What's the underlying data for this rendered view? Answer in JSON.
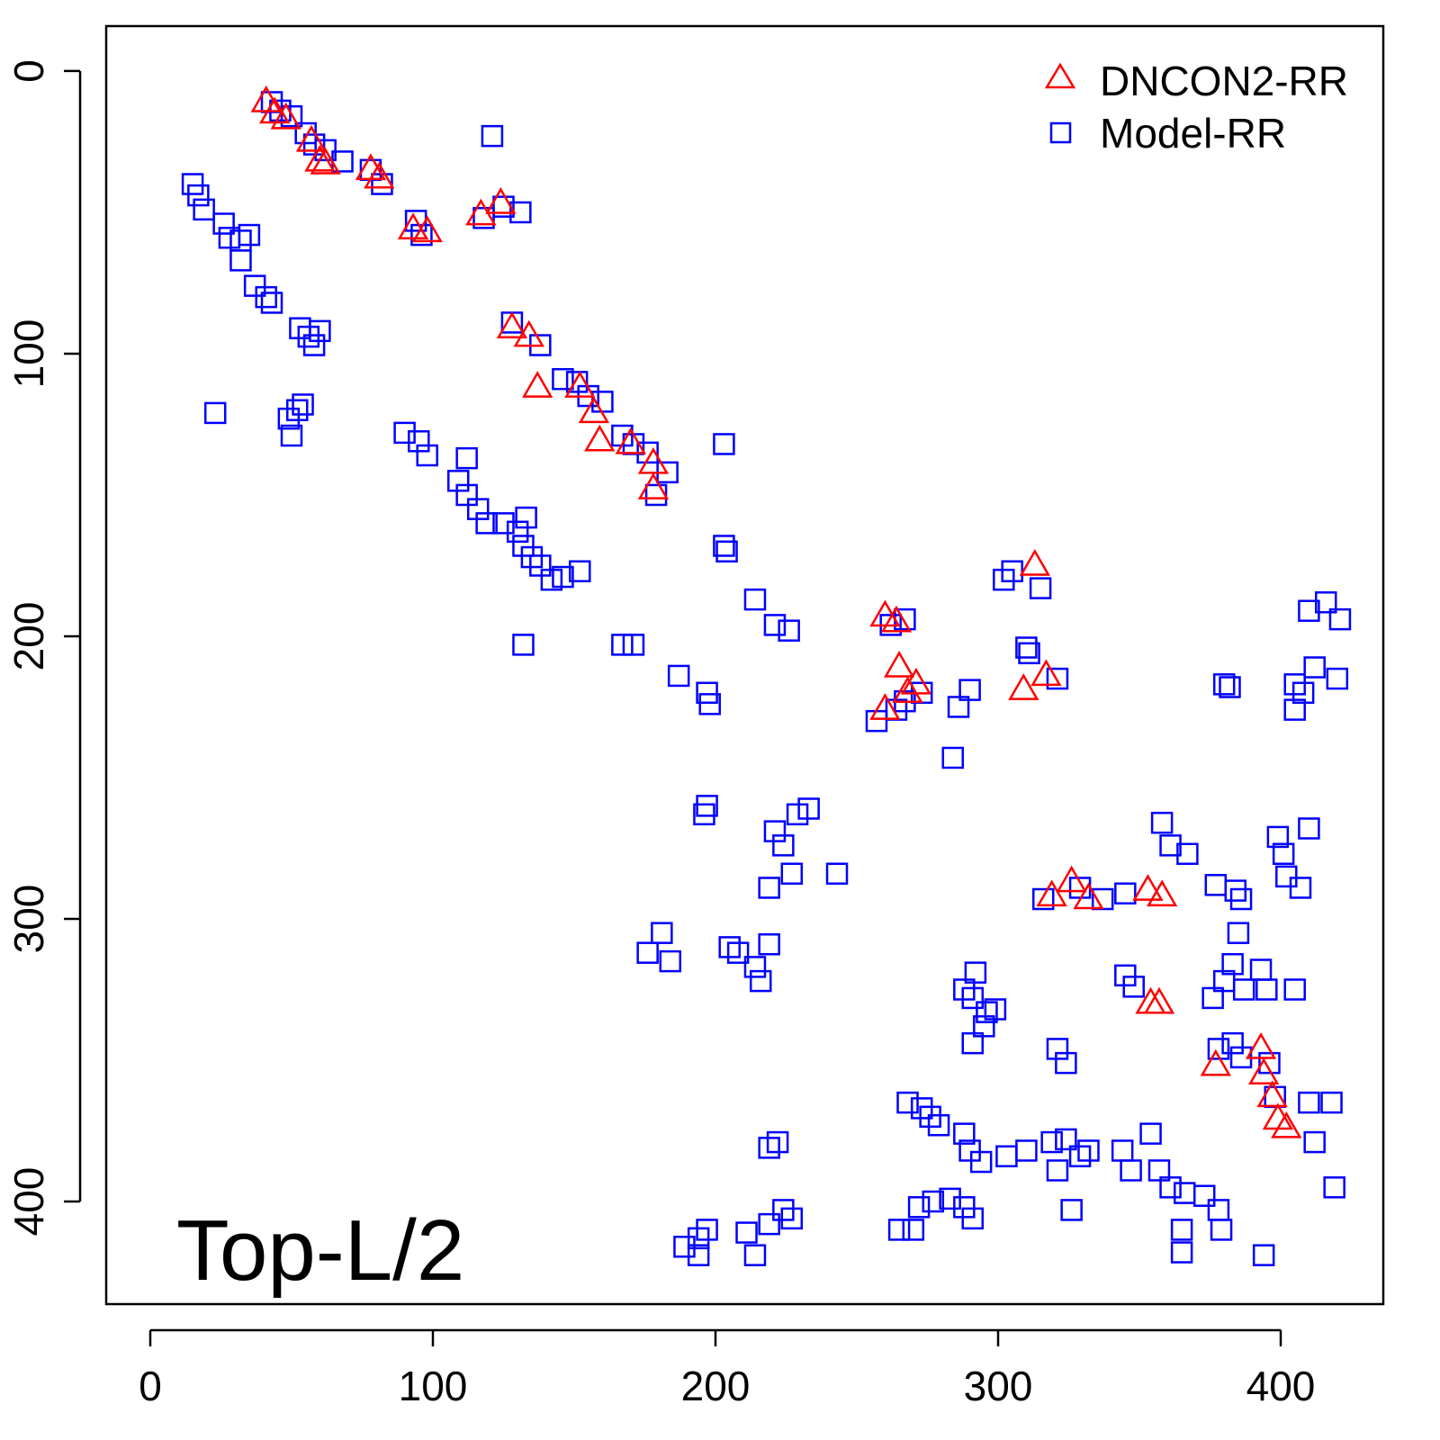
{
  "chart_data": {
    "type": "scatter",
    "title": "",
    "xlabel": "",
    "ylabel": "",
    "xlim": [
      -15.6,
      436.3
    ],
    "ylim": [
      436.3,
      -15.9
    ],
    "y_inverted": true,
    "grid": false,
    "xticks": [
      0,
      100,
      200,
      300,
      400
    ],
    "yticks": [
      0,
      100,
      200,
      300,
      400
    ],
    "annotation": "Top-L/2",
    "legend": {
      "placement": "top-right",
      "entries": [
        "DNCON2-RR",
        "Model-RR"
      ]
    },
    "series": [
      {
        "name": "DNCON2-RR",
        "marker": "triangle",
        "color": "#ff0000",
        "points": [
          [
            41,
            11
          ],
          [
            44,
            15
          ],
          [
            48,
            17
          ],
          [
            57,
            25
          ],
          [
            60,
            32
          ],
          [
            62,
            33
          ],
          [
            78,
            35
          ],
          [
            81,
            38
          ],
          [
            93,
            56
          ],
          [
            98,
            57
          ],
          [
            117,
            51
          ],
          [
            124,
            47
          ],
          [
            128,
            91
          ],
          [
            134,
            94
          ],
          [
            137,
            112
          ],
          [
            152,
            112
          ],
          [
            157,
            121
          ],
          [
            159,
            131
          ],
          [
            170,
            132
          ],
          [
            178,
            139
          ],
          [
            178,
            148
          ],
          [
            260,
            193
          ],
          [
            264,
            195
          ],
          [
            265,
            211
          ],
          [
            260,
            226
          ],
          [
            268,
            220
          ],
          [
            271,
            217
          ],
          [
            309,
            219
          ],
          [
            317,
            214
          ],
          [
            313,
            175
          ],
          [
            326,
            287
          ],
          [
            319,
            292
          ],
          [
            332,
            293
          ],
          [
            353,
            290
          ],
          [
            358,
            292
          ],
          [
            354,
            330
          ],
          [
            357,
            330
          ],
          [
            377,
            352
          ],
          [
            393,
            346
          ],
          [
            394,
            355
          ],
          [
            397,
            363
          ],
          [
            399,
            371
          ],
          [
            402,
            374
          ]
        ]
      },
      {
        "name": "Model-RR",
        "marker": "square",
        "color": "#0000ff",
        "points": [
          [
            43,
            11
          ],
          [
            46,
            14
          ],
          [
            50,
            16
          ],
          [
            55,
            22
          ],
          [
            58,
            26
          ],
          [
            62,
            28
          ],
          [
            68,
            32
          ],
          [
            78,
            35
          ],
          [
            82,
            40
          ],
          [
            94,
            53
          ],
          [
            96,
            58
          ],
          [
            118,
            52
          ],
          [
            125,
            48
          ],
          [
            131,
            50
          ],
          [
            121,
            23
          ],
          [
            15,
            40
          ],
          [
            17,
            44
          ],
          [
            19,
            49
          ],
          [
            26,
            54
          ],
          [
            28,
            59
          ],
          [
            32,
            60
          ],
          [
            35,
            58
          ],
          [
            32,
            67
          ],
          [
            37,
            76
          ],
          [
            41,
            80
          ],
          [
            43,
            82
          ],
          [
            53,
            91
          ],
          [
            56,
            94
          ],
          [
            58,
            97
          ],
          [
            60,
            92
          ],
          [
            23,
            121
          ],
          [
            49,
            123
          ],
          [
            52,
            120
          ],
          [
            54,
            118
          ],
          [
            50,
            129
          ],
          [
            90,
            128
          ],
          [
            95,
            131
          ],
          [
            98,
            136
          ],
          [
            112,
            137
          ],
          [
            109,
            145
          ],
          [
            112,
            150
          ],
          [
            116,
            155
          ],
          [
            119,
            160
          ],
          [
            125,
            160
          ],
          [
            130,
            163
          ],
          [
            133,
            158
          ],
          [
            132,
            168
          ],
          [
            135,
            172
          ],
          [
            138,
            175
          ],
          [
            142,
            180
          ],
          [
            146,
            179
          ],
          [
            152,
            177
          ],
          [
            132,
            203
          ],
          [
            128,
            89
          ],
          [
            138,
            97
          ],
          [
            146,
            109
          ],
          [
            151,
            110
          ],
          [
            155,
            115
          ],
          [
            160,
            117
          ],
          [
            167,
            129
          ],
          [
            171,
            132
          ],
          [
            176,
            135
          ],
          [
            183,
            142
          ],
          [
            179,
            150
          ],
          [
            203,
            132
          ],
          [
            203,
            168
          ],
          [
            204,
            170
          ],
          [
            214,
            187
          ],
          [
            221,
            196
          ],
          [
            226,
            198
          ],
          [
            167,
            203
          ],
          [
            171,
            203
          ],
          [
            187,
            214
          ],
          [
            197,
            220
          ],
          [
            198,
            224
          ],
          [
            284,
            243
          ],
          [
            286,
            225
          ],
          [
            290,
            219
          ],
          [
            302,
            180
          ],
          [
            305,
            177
          ],
          [
            315,
            183
          ],
          [
            310,
            204
          ],
          [
            311,
            206
          ],
          [
            321,
            215
          ],
          [
            262,
            196
          ],
          [
            267,
            194
          ],
          [
            257,
            230
          ],
          [
            264,
            226
          ],
          [
            267,
            223
          ],
          [
            273,
            220
          ],
          [
            380,
            217
          ],
          [
            382,
            218
          ],
          [
            410,
            191
          ],
          [
            416,
            188
          ],
          [
            421,
            194
          ],
          [
            405,
            217
          ],
          [
            408,
            220
          ],
          [
            412,
            211
          ],
          [
            420,
            215
          ],
          [
            405,
            226
          ],
          [
            196,
            263
          ],
          [
            197,
            260
          ],
          [
            221,
            269
          ],
          [
            224,
            274
          ],
          [
            229,
            263
          ],
          [
            233,
            261
          ],
          [
            243,
            284
          ],
          [
            219,
            289
          ],
          [
            227,
            284
          ],
          [
            176,
            312
          ],
          [
            181,
            305
          ],
          [
            184,
            315
          ],
          [
            205,
            310
          ],
          [
            208,
            312
          ],
          [
            214,
            317
          ],
          [
            216,
            322
          ],
          [
            219,
            309
          ],
          [
            358,
            266
          ],
          [
            361,
            274
          ],
          [
            367,
            277
          ],
          [
            377,
            288
          ],
          [
            384,
            290
          ],
          [
            386,
            293
          ],
          [
            399,
            271
          ],
          [
            401,
            277
          ],
          [
            402,
            285
          ],
          [
            407,
            289
          ],
          [
            410,
            268
          ],
          [
            385,
            305
          ],
          [
            383,
            316
          ],
          [
            380,
            322
          ],
          [
            387,
            325
          ],
          [
            393,
            318
          ],
          [
            376,
            328
          ],
          [
            395,
            325
          ],
          [
            405,
            325
          ],
          [
            345,
            320
          ],
          [
            348,
            324
          ],
          [
            329,
            289
          ],
          [
            337,
            293
          ],
          [
            345,
            291
          ],
          [
            316,
            293
          ],
          [
            288,
            325
          ],
          [
            291,
            328
          ],
          [
            296,
            333
          ],
          [
            299,
            332
          ],
          [
            292,
            319
          ],
          [
            291,
            344
          ],
          [
            295,
            338
          ],
          [
            321,
            346
          ],
          [
            324,
            351
          ],
          [
            378,
            346
          ],
          [
            383,
            344
          ],
          [
            386,
            349
          ],
          [
            396,
            351
          ],
          [
            398,
            363
          ],
          [
            410,
            365
          ],
          [
            418,
            365
          ],
          [
            412,
            379
          ],
          [
            419,
            395
          ],
          [
            394,
            419
          ],
          [
            268,
            365
          ],
          [
            273,
            367
          ],
          [
            276,
            370
          ],
          [
            279,
            373
          ],
          [
            288,
            376
          ],
          [
            290,
            382
          ],
          [
            294,
            386
          ],
          [
            303,
            384
          ],
          [
            310,
            382
          ],
          [
            319,
            379
          ],
          [
            324,
            378
          ],
          [
            329,
            384
          ],
          [
            332,
            382
          ],
          [
            321,
            389
          ],
          [
            326,
            403
          ],
          [
            344,
            382
          ],
          [
            347,
            389
          ],
          [
            354,
            376
          ],
          [
            357,
            389
          ],
          [
            361,
            395
          ],
          [
            366,
            397
          ],
          [
            373,
            398
          ],
          [
            378,
            403
          ],
          [
            379,
            410
          ],
          [
            365,
            410
          ],
          [
            365,
            418
          ],
          [
            265,
            410
          ],
          [
            270,
            410
          ],
          [
            272,
            402
          ],
          [
            277,
            400
          ],
          [
            283,
            399
          ],
          [
            288,
            402
          ],
          [
            291,
            406
          ],
          [
            219,
            381
          ],
          [
            222,
            379
          ],
          [
            189,
            416
          ],
          [
            194,
            413
          ],
          [
            197,
            410
          ],
          [
            194,
            419
          ],
          [
            211,
            411
          ],
          [
            214,
            419
          ],
          [
            219,
            408
          ],
          [
            224,
            403
          ],
          [
            227,
            406
          ]
        ]
      }
    ]
  }
}
